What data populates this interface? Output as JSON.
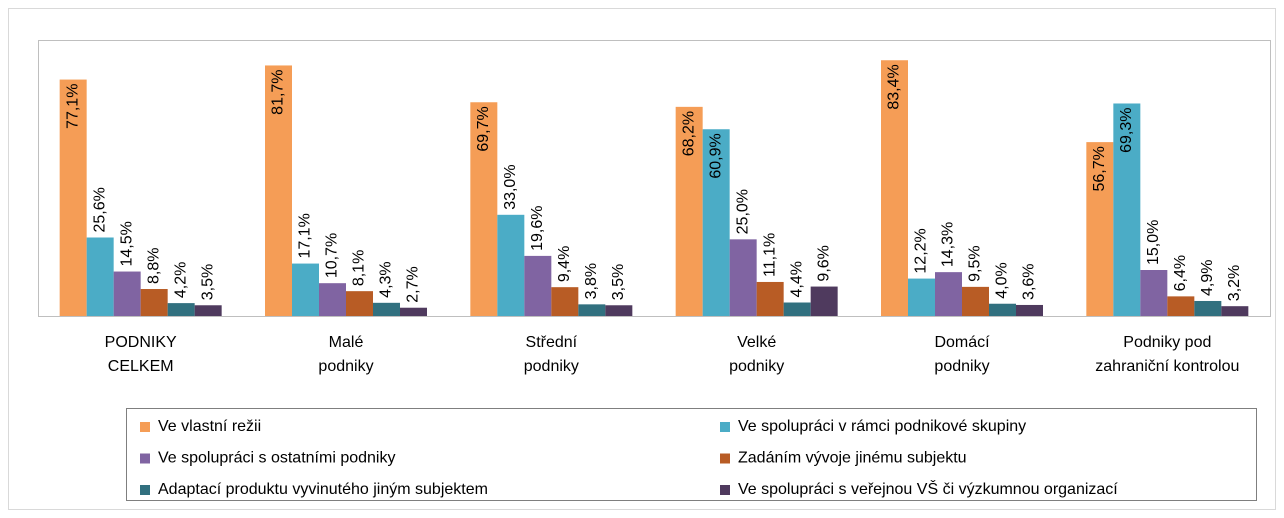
{
  "chart_data": {
    "type": "bar",
    "categories": [
      [
        "PODNIKY",
        "CELKEM"
      ],
      [
        "Malé",
        "podniky"
      ],
      [
        "Střední",
        "podniky"
      ],
      [
        "Velké",
        "podniky"
      ],
      [
        "Domácí",
        "podniky"
      ],
      [
        "Podniky pod",
        "zahraniční kontrolou"
      ]
    ],
    "ylim": [
      0,
      90
    ],
    "series": [
      {
        "name": "Ve vlastní režii",
        "color": "#f59d56",
        "values": [
          77.1,
          81.7,
          69.7,
          68.2,
          83.4,
          56.7
        ],
        "value_labels": [
          "77,1%",
          "81,7%",
          "69,7%",
          "68,2%",
          "83,4%",
          "56,7%"
        ]
      },
      {
        "name": "Ve spolupráci v rámci podnikové skupiny",
        "color": "#4bacc6",
        "values": [
          25.6,
          17.1,
          33.0,
          60.9,
          12.2,
          69.3
        ],
        "value_labels": [
          "25,6%",
          "17,1%",
          "33,0%",
          "60,9%",
          "12,2%",
          "69,3%"
        ]
      },
      {
        "name": "Ve spolupráci s ostatními podniky",
        "color": "#8064a2",
        "values": [
          14.5,
          10.7,
          19.6,
          25.0,
          14.3,
          15.0
        ],
        "value_labels": [
          "14,5%",
          "10,7%",
          "19,6%",
          "25,0%",
          "14,3%",
          "15,0%"
        ]
      },
      {
        "name": "Zadáním vývoje jinému subjektu",
        "color": "#b85c25",
        "values": [
          8.8,
          8.1,
          9.4,
          11.1,
          9.5,
          6.4
        ],
        "value_labels": [
          "8,8%",
          "8,1%",
          "9,4%",
          "11,1%",
          "9,5%",
          "6,4%"
        ]
      },
      {
        "name": "Adaptací produktu vyvinutého jiným subjektem",
        "color": "#31707f",
        "values": [
          4.2,
          4.3,
          3.8,
          4.4,
          4.0,
          4.9
        ],
        "value_labels": [
          "4,2%",
          "4,3%",
          "3,8%",
          "4,4%",
          "4,0%",
          "4,9%"
        ]
      },
      {
        "name": "Ve spolupráci s veřejnou VŠ či výzkumnou organizací",
        "color": "#4f3a5e",
        "values": [
          3.5,
          2.7,
          3.5,
          9.6,
          3.6,
          3.2
        ],
        "value_labels": [
          "3,5%",
          "2,7%",
          "3,5%",
          "9,6%",
          "3,6%",
          "3,2%"
        ]
      }
    ]
  }
}
